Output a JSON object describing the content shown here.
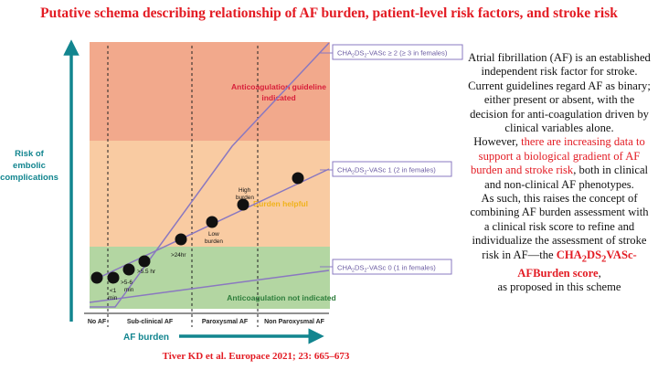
{
  "title": "Putative schema describing relationship of AF burden, patient-level risk factors, and stroke risk",
  "citation": "Tiver KD et al. Europace 2021; 23: 665–673",
  "diagram": {
    "y_axis_label_line1": "Risk of",
    "y_axis_label_line2": "embolic",
    "y_axis_label_line3": "complications",
    "x_axis_label": "AF burden",
    "zones": {
      "top_label_line1": "Anticoagulation guideline",
      "top_label_line2": "indicated",
      "middle_label": "Burden helpful",
      "bottom_label": "Anticoagulation not indicated"
    },
    "score_lines": [
      {
        "prefix": "CHA",
        "sub1": "2",
        "mid": "DS",
        "sub2": "2",
        "suffix": "-VASc ≥ 2 (≥ 3 in females)"
      },
      {
        "prefix": "CHA",
        "sub1": "2",
        "mid": "DS",
        "sub2": "2",
        "suffix": "-VASc 1 (2 in females)"
      },
      {
        "prefix": "CHA",
        "sub1": "2",
        "mid": "DS",
        "sub2": "2",
        "suffix": "-VASc 0 (1 in females)"
      }
    ],
    "categories": [
      "No AF",
      "Sub-clinical AF",
      "Paroxysmal AF",
      "Non Paroxysmal AF"
    ],
    "points": [
      {
        "label_line1": "",
        "label_line2": ""
      },
      {
        "label_line1": "<1",
        "label_line2": "min"
      },
      {
        "label_line1": ">5-6",
        "label_line2": "min"
      },
      {
        "label_line1": ">5.5 hr",
        "label_line2": ""
      },
      {
        "label_line1": ">24hr",
        "label_line2": ""
      },
      {
        "label_line1": "Low",
        "label_line2": "burden"
      },
      {
        "label_line1": "High",
        "label_line2": "burden"
      },
      {
        "label_line1": "",
        "label_line2": ""
      }
    ]
  },
  "body_text": {
    "p1": "Atrial fibrillation (AF) is an established independent risk factor for stroke.",
    "p2": "Current guidelines regard AF as binary; either present or absent, with the decision for anti-coagulation driven by clinical variables alone.",
    "p3_start": "However, ",
    "p3_red": "there are increasing data to support a biological gradient of AF burden and stroke risk",
    "p3_end": ", both in clinical and non-clinical AF phenotypes.",
    "p4_start": "As such, this raises the concept of combining AF burden assessment with a clinical risk score to refine and individualize the assessment of stroke risk in AF—the ",
    "p4_score_a": "CHA",
    "p4_score_sub1": "2",
    "p4_score_b": "DS",
    "p4_score_sub2": "2",
    "p4_score_c": "VASc-AFBurden score",
    "p4_end": ",",
    "p5": "as proposed in this scheme"
  },
  "colors": {
    "title_red": "#e31b23",
    "teal": "#12858f",
    "zone_top": "#f2a98c",
    "zone_middle": "#f9cba2",
    "zone_bottom": "#b3d6a2",
    "line_purple": "#8a78c0",
    "zone_label_red": "#d81f3a",
    "zone_label_yellow": "#f0b21c",
    "zone_label_green": "#2d7d3b"
  }
}
